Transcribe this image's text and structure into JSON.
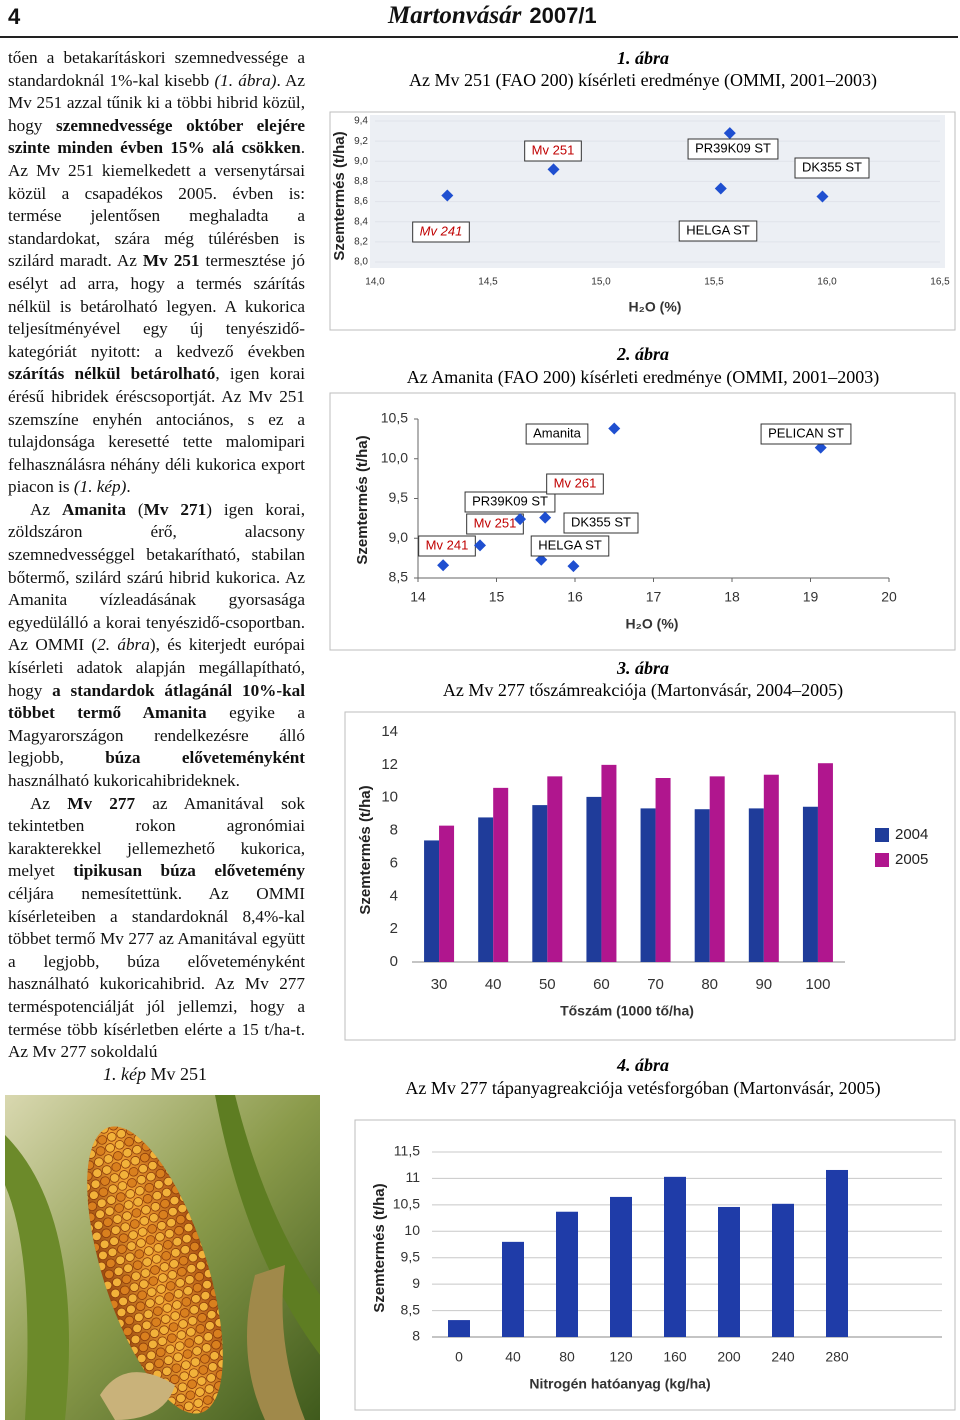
{
  "header": {
    "page_number": "4",
    "journal": "Martonvásár",
    "issue": "2007/1"
  },
  "text": {
    "paragraphs": [
      [
        "tően a betakarításkori szemnedvessége a standardoknál 1%-kal kisebb ",
        {
          "text": "(1. ábra)",
          "style": "italic"
        },
        ". Az Mv 251 azzal tűnik ki a többi hibrid közül, hogy ",
        {
          "text": "szemnedvessége október elejére szinte minden évben 15% alá csökken",
          "style": "bold"
        },
        ". Az Mv 251 kiemelkedett a versenytársai közül a csapadékos 2005. évben is: termése jelentősen meghaladta a standardokat, szára még túlérésben is szilárd maradt. Az ",
        {
          "text": "Mv 251",
          "style": "bold"
        },
        " termesztése jó esélyt ad arra, hogy a termés szárítás nélkül is betárolható legyen. A kukorica teljesítményével egy új tenyészidő-kategóriát nyitott: a kedvező években ",
        {
          "text": "szárítás nélkül betárolható",
          "style": "bold"
        },
        ", igen korai érésű hibridek éréscsoportját. Az Mv 251 szemszíne enyhén antociános, s ez a tulajdonsága keresetté tette malomipari felhasználásra néhány déli kukorica export piacon is ",
        {
          "text": "(1. kép)",
          "style": "italic"
        },
        "."
      ],
      [
        "Az ",
        {
          "text": "Amanita",
          "style": "bold"
        },
        " (",
        {
          "text": "Mv 271",
          "style": "bold"
        },
        ") igen korai, zöldszáron érő, alacsony szemnedvességgel betakarítható, stabilan bőtermő, szilárd szárú hibrid kukorica. Az Amanita vízleadásának gyorsasága egyedülálló a korai tenyészidő-csoportban. Az OMMI (",
        {
          "text": "2. ábra",
          "style": "italic"
        },
        "), és kiterjedt európai kísérleti adatok alapján megállapítható, hogy ",
        {
          "text": "a standardok átlagánál 10%-kal többet termő Amanita",
          "style": "bold"
        },
        " egyike a Magyarországon rendelkezésre álló legjobb, ",
        {
          "text": "búza előveteményként",
          "style": "bold"
        },
        " használható kukoricahibrideknek."
      ],
      [
        "Az ",
        {
          "text": "Mv 277",
          "style": "bold"
        },
        " az Amanitával sok tekintetben rokon agronómiai karakterekkel jellemezhető kukorica, melyet ",
        {
          "text": "tipikusan búza elővetemény",
          "style": "bold"
        },
        " céljára nemesítettünk. Az OMMI kísérleteiben a standardoknál 8,4%-kal többet termő Mv 277 az Amanitával együtt a legjobb, búza előveteményként használható kukoricahibrid. Az Mv 277 terméspotenciálját jól jellemzi, hogy a termése több kísérletben elérte a 15 t/ha-t. Az Mv 277 sokoldalú"
      ]
    ]
  },
  "photo": {
    "caption": [
      {
        "text": "1. kép",
        "style": "italic"
      },
      " Mv 251"
    ]
  },
  "chart_data": [
    {
      "type": "scatter",
      "figure_label": "1. ábra",
      "title": "Az Mv 251 (FAO 200) kísérleti eredménye (OMMI, 2001–2003)",
      "x_label": "H₂O (%)",
      "y_label": "Szemtermés (t/ha)",
      "x": [
        14.32,
        14.79,
        15.57,
        15.53,
        15.98
      ],
      "values": [
        8.66,
        8.92,
        9.28,
        8.73,
        8.65
      ],
      "point_labels": [
        "Mv 241",
        "Mv 251",
        "PR39K09 ST",
        "HELGA ST",
        "DK355 ST"
      ],
      "label_colors": [
        "#c00000",
        "#c00000",
        "#000000",
        "#000000",
        "#000000"
      ],
      "color": "#1f4fd0",
      "xlim": [
        14,
        16.5
      ],
      "xticks": [
        {
          "value": 14,
          "label": "14,0"
        },
        {
          "value": 14.5,
          "label": "14,5"
        },
        {
          "value": 15,
          "label": "15,0"
        },
        {
          "value": 15.5,
          "label": "15,5"
        },
        {
          "value": 16,
          "label": "16,0"
        },
        {
          "value": 16.5,
          "label": "16,5"
        }
      ],
      "ylim": [
        8,
        9.4
      ],
      "yticks": [
        {
          "value": 8,
          "label": "8,0"
        },
        {
          "value": 8.2,
          "label": "8,2"
        },
        {
          "value": 8.4,
          "label": "8,4"
        },
        {
          "value": 8.6,
          "label": "8,6"
        },
        {
          "value": 8.8,
          "label": "8,8"
        },
        {
          "value": 9,
          "label": "9,0"
        },
        {
          "value": 9.2,
          "label": "9,2"
        },
        {
          "value": 9.4,
          "label": "9,4"
        }
      ],
      "grid": true
    },
    {
      "type": "scatter",
      "figure_label": "2. ábra",
      "title": "Az Amanita (FAO 200) kísérleti eredménye (OMMI, 2001–2003)",
      "x_label": "H₂O (%)",
      "y_label": "Szemtermés (t/ha)",
      "x": [
        14.32,
        14.79,
        15.3,
        15.62,
        15.98,
        15.57,
        16.5,
        19.13
      ],
      "values": [
        8.66,
        8.91,
        9.24,
        9.26,
        8.65,
        8.73,
        10.38,
        10.14
      ],
      "point_labels": [
        "Mv 241",
        "Mv 251",
        "PR39K09 ST",
        "Mv 261",
        "DK355 ST",
        "HELGA ST",
        "Amanita",
        "PELICAN ST"
      ],
      "label_colors": [
        "#c00000",
        "#c00000",
        "#000000",
        "#c00000",
        "#000000",
        "#000000",
        "#000000",
        "#000000"
      ],
      "color": "#1f4fd0",
      "xlim": [
        14,
        20
      ],
      "xticks": [
        14,
        15,
        16,
        17,
        18,
        19,
        20
      ],
      "ylim": [
        8.5,
        10.5
      ],
      "yticks": [
        {
          "value": 8.5,
          "label": "8,5"
        },
        {
          "value": 9,
          "label": "9,0"
        },
        {
          "value": 9.5,
          "label": "9,5"
        },
        {
          "value": 10,
          "label": "10,0"
        },
        {
          "value": 10.5,
          "label": "10,5"
        }
      ],
      "grid": false
    },
    {
      "type": "bar",
      "figure_label": "3. ábra",
      "title": "Az Mv 277 tőszámreakciója (Martonvásár, 2004–2005)",
      "x_label": "Tőszám (1000 tő/ha)",
      "y_label": "Szemtermés (t/ha)",
      "categories": [
        "30",
        "40",
        "50",
        "60",
        "70",
        "80",
        "90",
        "100"
      ],
      "series": [
        {
          "name": "2004",
          "color": "#1f3c9a",
          "values": [
            7.4,
            8.8,
            9.55,
            10.05,
            9.35,
            9.3,
            9.35,
            9.45
          ]
        },
        {
          "name": "2005",
          "color": "#b0168e",
          "values": [
            8.3,
            10.6,
            11.3,
            12.0,
            11.2,
            11.3,
            11.4,
            12.1
          ]
        }
      ],
      "ylim": [
        0,
        14
      ],
      "yticks": [
        0,
        2,
        4,
        6,
        8,
        10,
        12,
        14
      ],
      "grid": false,
      "legend": "right"
    },
    {
      "type": "bar",
      "figure_label": "4. ábra",
      "title": "Az Mv 277 tápanyagreakciója vetésforgóban (Martonvásár, 2005)",
      "x_label": "Nitrogén hatóanyag (kg/ha)",
      "y_label": "Szemtermés (t/ha)",
      "categories": [
        "0",
        "40",
        "80",
        "120",
        "160",
        "200",
        "240",
        "280"
      ],
      "series": [
        {
          "color": "#1f3ca8",
          "values": [
            8.32,
            9.8,
            10.37,
            10.65,
            11.03,
            10.46,
            10.52,
            11.16
          ]
        }
      ],
      "ylim": [
        8,
        11.5
      ],
      "yticks": [
        8,
        {
          "value": 8.5,
          "label": "8,5"
        },
        9,
        {
          "value": 9.5,
          "label": "9,5"
        },
        10,
        {
          "value": 10.5,
          "label": "10,5"
        },
        11,
        {
          "value": 11.5,
          "label": "11,5"
        }
      ],
      "grid": true
    }
  ]
}
